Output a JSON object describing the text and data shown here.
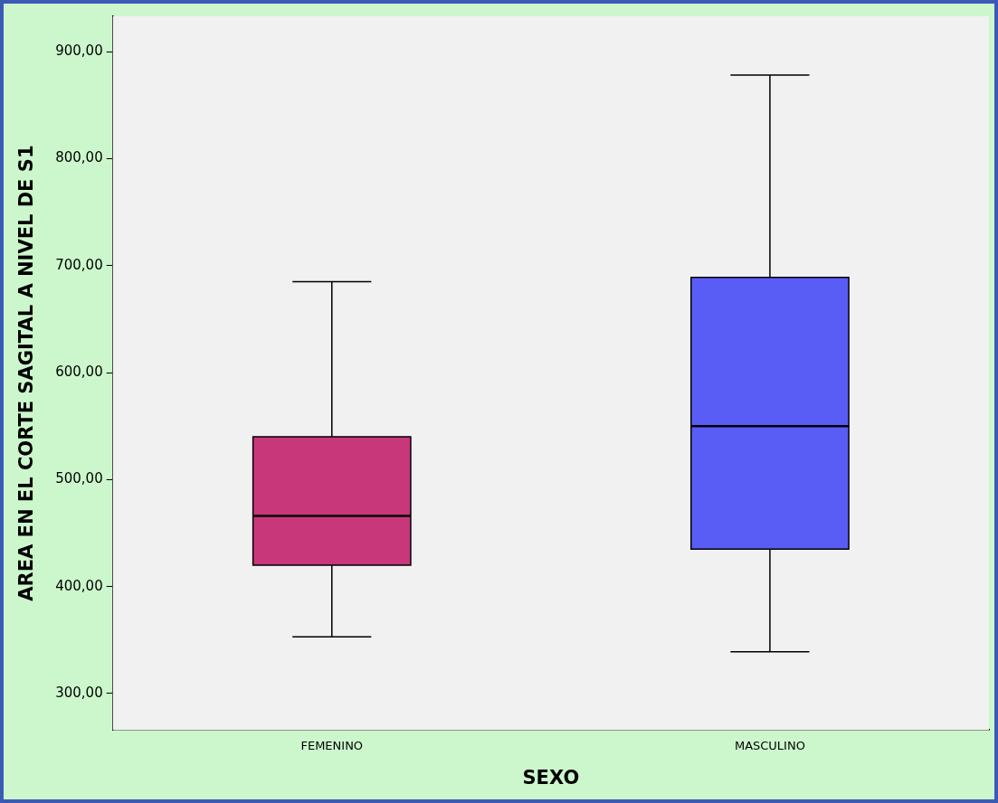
{
  "chart_data": {
    "type": "box",
    "xlabel": "SEXO",
    "ylabel": "AREA EN EL CORTE SAGITAL A NIVEL DE S1",
    "categories": [
      "FEMENINO",
      "MASCULINO"
    ],
    "colors": [
      "#c8377a",
      "#5a5cf6"
    ],
    "boxes": [
      {
        "low": 353,
        "q1": 420,
        "median": 466,
        "q3": 540,
        "high": 685
      },
      {
        "low": 339,
        "q1": 435,
        "median": 550,
        "q3": 689,
        "high": 878
      }
    ],
    "ylim": [
      266,
      933
    ],
    "yticks": [
      {
        "value": 300,
        "label": "300,00"
      },
      {
        "value": 400,
        "label": "400,00"
      },
      {
        "value": 500,
        "label": "500,00"
      },
      {
        "value": 600,
        "label": "600,00"
      },
      {
        "value": 700,
        "label": "700,00"
      },
      {
        "value": 800,
        "label": "800,00"
      },
      {
        "value": 900,
        "label": "900,00"
      }
    ],
    "grid": false,
    "legend": false
  }
}
